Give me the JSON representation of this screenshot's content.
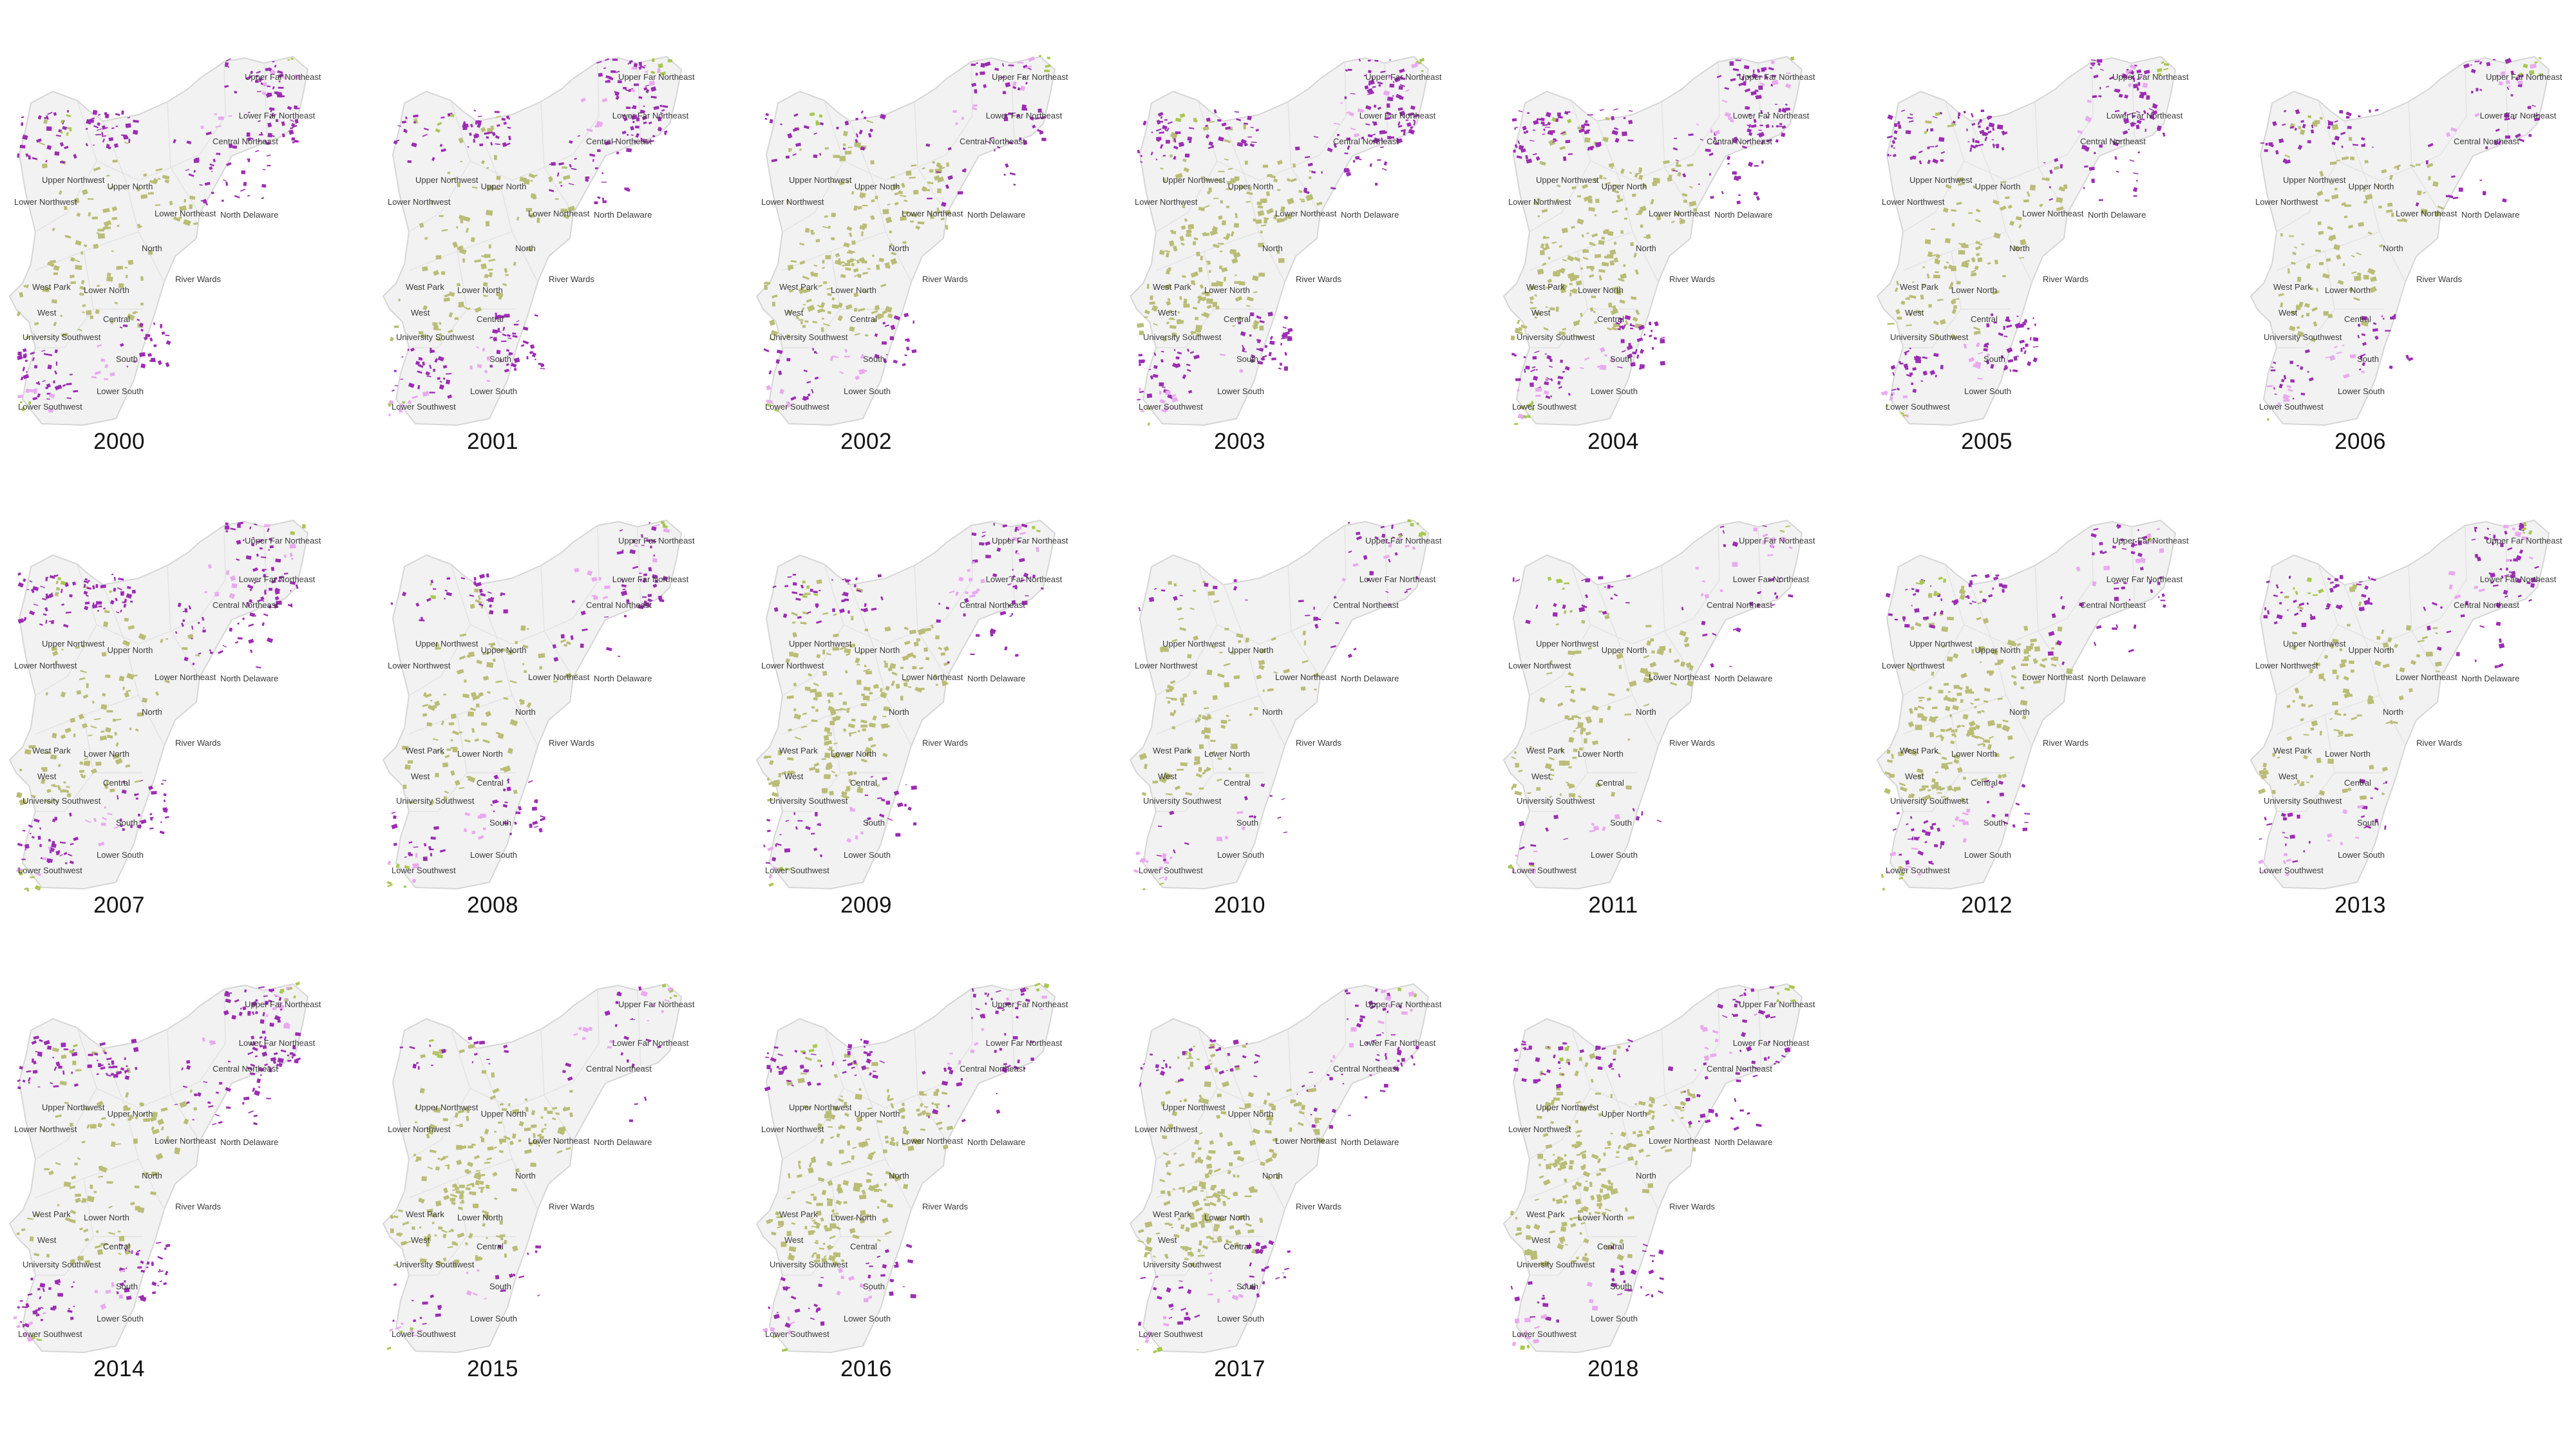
{
  "colors": {
    "city_fill": "#f2f2f2",
    "city_stroke": "#d6d6d6",
    "olive": "#b9bd76",
    "purple": "#9c2cb3",
    "pink": "#e9a9ef",
    "lime": "#a9c750",
    "year_text": "#111111"
  },
  "district_labels": [
    "Upper Far Northeast",
    "Lower Far Northeast",
    "Central Northeast",
    "Upper Northwest",
    "Upper North",
    "Lower Northwest",
    "Lower Northeast",
    "North Delaware",
    "North",
    "West Park",
    "Lower North",
    "River Wards",
    "West",
    "Central",
    "University Southwest",
    "South",
    "Lower South",
    "Lower Southwest"
  ],
  "panels": [
    {
      "year": "2000",
      "purple": "high",
      "olive": "med"
    },
    {
      "year": "2001",
      "purple": "high",
      "olive": "med"
    },
    {
      "year": "2002",
      "purple": "med",
      "olive": "high"
    },
    {
      "year": "2003",
      "purple": "high",
      "olive": "high"
    },
    {
      "year": "2004",
      "purple": "high",
      "olive": "high"
    },
    {
      "year": "2005",
      "purple": "high",
      "olive": "med"
    },
    {
      "year": "2006",
      "purple": "med",
      "olive": "med"
    },
    {
      "year": "2007",
      "purple": "high",
      "olive": "med"
    },
    {
      "year": "2008",
      "purple": "med",
      "olive": "med"
    },
    {
      "year": "2009",
      "purple": "med",
      "olive": "high"
    },
    {
      "year": "2010",
      "purple": "low",
      "olive": "med"
    },
    {
      "year": "2011",
      "purple": "low",
      "olive": "med"
    },
    {
      "year": "2012",
      "purple": "med",
      "olive": "high"
    },
    {
      "year": "2013",
      "purple": "med",
      "olive": "med"
    },
    {
      "year": "2014",
      "purple": "high",
      "olive": "med"
    },
    {
      "year": "2015",
      "purple": "low",
      "olive": "high"
    },
    {
      "year": "2016",
      "purple": "med",
      "olive": "high"
    },
    {
      "year": "2017",
      "purple": "med",
      "olive": "high"
    },
    {
      "year": "2018",
      "purple": "med",
      "olive": "high"
    }
  ]
}
